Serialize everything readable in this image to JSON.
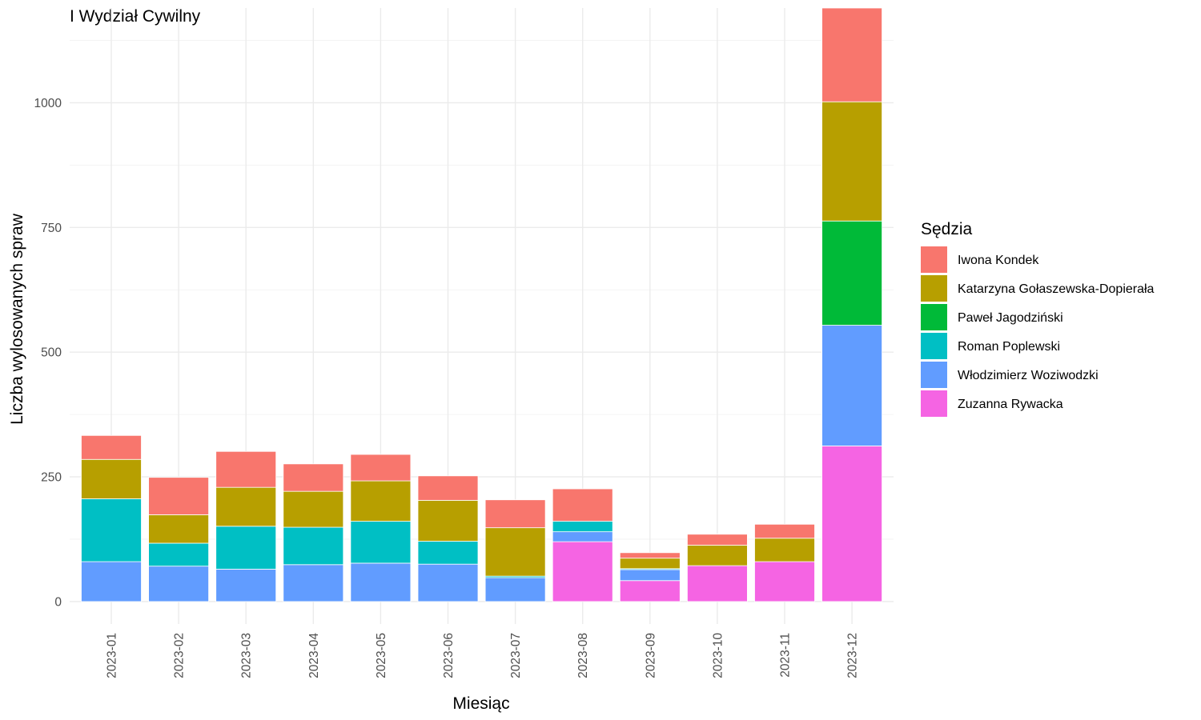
{
  "chart_data": {
    "type": "bar",
    "stacked": true,
    "title": "I Wydział Cywilny",
    "xlabel": "Miesiąc",
    "ylabel": "Liczba wylosowanych spraw",
    "ylim": [
      -45,
      1190
    ],
    "yticks": [
      0,
      250,
      500,
      750,
      1000
    ],
    "grid": true,
    "legend_position": "right",
    "legend_title": "Sędzia",
    "categories": [
      "2023-01",
      "2023-02",
      "2023-03",
      "2023-04",
      "2023-05",
      "2023-06",
      "2023-07",
      "2023-08",
      "2023-09",
      "2023-10",
      "2023-11",
      "2023-12"
    ],
    "series": [
      {
        "name": "Iwona Kondek",
        "color": "#F8766D",
        "values": [
          48,
          75,
          72,
          55,
          53,
          49,
          56,
          65,
          11,
          22,
          28,
          188
        ]
      },
      {
        "name": "Katarzyna Gołaszewska-Dopierała",
        "color": "#B79F00",
        "values": [
          79,
          57,
          78,
          72,
          81,
          82,
          97,
          0,
          21,
          41,
          47,
          239
        ]
      },
      {
        "name": "Paweł Jagodziński",
        "color": "#00BA38",
        "values": [
          0,
          0,
          0,
          0,
          0,
          0,
          0,
          0,
          0,
          0,
          0,
          209
        ]
      },
      {
        "name": "Roman Poplewski",
        "color": "#00BFC4",
        "values": [
          126,
          46,
          86,
          75,
          84,
          46,
          3,
          21,
          2,
          0,
          0,
          0
        ]
      },
      {
        "name": "Włodzimierz Woziwodzki",
        "color": "#619CFF",
        "values": [
          80,
          71,
          65,
          74,
          77,
          75,
          48,
          20,
          22,
          0,
          0,
          242
        ]
      },
      {
        "name": "Zuzanna Rywacka",
        "color": "#F564E3",
        "values": [
          0,
          0,
          0,
          0,
          0,
          0,
          0,
          120,
          42,
          72,
          80,
          312
        ]
      }
    ]
  }
}
